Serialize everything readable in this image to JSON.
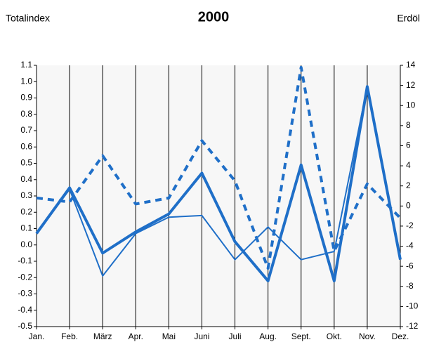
{
  "chart_data": {
    "type": "line",
    "title": "2000",
    "y_label": "Totalindex",
    "y2_label": "Erdöl",
    "categories": [
      "Jan.",
      "Feb.",
      "März",
      "Apr.",
      "Mai",
      "Juni",
      "Juli",
      "Aug.",
      "Sept.",
      "Okt.",
      "Nov.",
      "Dez."
    ],
    "series": [
      {
        "color": "#1f6fc8",
        "style": "solid",
        "line_width": 4,
        "axis": "y",
        "values": [
          0.07,
          0.35,
          -0.05,
          0.08,
          0.19,
          0.44,
          0.02,
          -0.22,
          0.49,
          -0.22,
          0.97,
          -0.09
        ]
      },
      {
        "color": "#1f6fc8",
        "style": "solid",
        "line_width": 2,
        "axis": "y",
        "values": [
          0.07,
          0.34,
          -0.19,
          0.07,
          0.17,
          0.18,
          -0.09,
          0.11,
          -0.09,
          -0.04,
          0.97,
          -0.07
        ]
      },
      {
        "color": "#1f6fc8",
        "style": "dashed",
        "line_width": 4,
        "axis": "y2",
        "values": [
          0.8,
          0.4,
          5,
          0.2,
          0.8,
          6.5,
          2.5,
          -6.2,
          13.8,
          -4.5,
          2.2,
          -1.2
        ]
      }
    ],
    "ylim": [
      -0.5,
      1.1
    ],
    "yticks": [
      -0.5,
      -0.4,
      -0.3,
      -0.2,
      -0.1,
      {
        "value": 0,
        "label": "0.0"
      },
      0.1,
      0.2,
      0.3,
      0.4,
      0.5,
      0.6,
      0.7,
      0.8,
      0.9,
      {
        "value": 1,
        "label": "1.0"
      },
      1.1
    ],
    "y2lim": [
      -12,
      14
    ],
    "y2ticks": [
      -12,
      -10,
      -8,
      -6,
      -4,
      -2,
      0,
      2,
      4,
      6,
      8,
      10,
      12,
      14
    ],
    "grid": true
  }
}
